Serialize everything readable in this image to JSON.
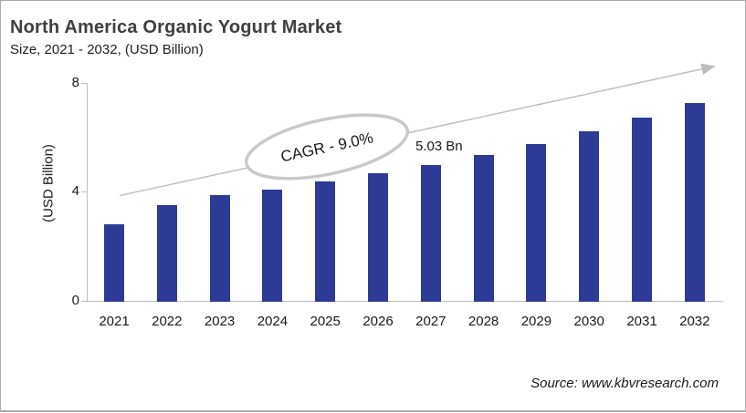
{
  "header": {
    "title": "North America Organic Yogurt Market",
    "subtitle": "Size, 2021 - 2032, (USD Billion)"
  },
  "chart_data": {
    "type": "bar",
    "title": "North America Organic Yogurt Market Size, 2021 - 2032, (USD Billion)",
    "categories": [
      "2021",
      "2022",
      "2023",
      "2024",
      "2025",
      "2026",
      "2027",
      "2028",
      "2029",
      "2030",
      "2031",
      "2032"
    ],
    "values": [
      2.85,
      3.55,
      3.9,
      4.1,
      4.4,
      4.7,
      5.03,
      5.4,
      5.8,
      6.25,
      6.75,
      7.3
    ],
    "xlabel": "",
    "ylabel": "(USD Billion)",
    "ylim": [
      0,
      8
    ],
    "yticks": [
      0,
      4,
      8
    ],
    "grid": false,
    "legend": false,
    "bar_color": "#2e3b96",
    "annotations": {
      "cagr_label": "CAGR - 9.0%",
      "value_label": {
        "text": "5.03 Bn",
        "category": "2027"
      },
      "trend_arrow": true
    }
  },
  "footer": {
    "source": "Source: www.kbvresearch.com"
  },
  "colors": {
    "bar": "#2e3b96",
    "axis": "#bfbfbf",
    "arrow": "#bdbdbd",
    "ellipse_stroke": "#c9c9c9",
    "title_text": "#3f3f3f",
    "body_text": "#1a1a1a"
  }
}
